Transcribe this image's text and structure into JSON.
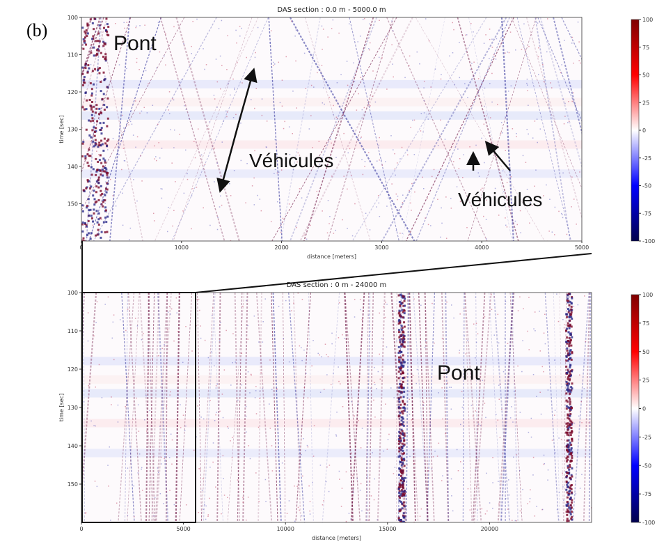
{
  "panel_label": "(b)",
  "chart_data": [
    {
      "type": "heatmap",
      "title": "DAS section : 0.0 m - 5000.0 m",
      "xlabel": "distance [meters]",
      "ylabel": "time [sec]",
      "xlim": [
        0,
        5000
      ],
      "xticks": [
        0,
        1000,
        2000,
        3000,
        4000,
        5000
      ],
      "ylim": [
        160,
        100
      ],
      "yticks": [
        100,
        110,
        120,
        130,
        140,
        150
      ],
      "colorbar": {
        "lim": [
          -100,
          100
        ],
        "ticks": [
          100,
          75,
          50,
          25,
          0,
          -25,
          -50,
          -75,
          -100
        ],
        "colors": [
          "#00004c",
          "#0000ff",
          "#ffffff",
          "#ff0000",
          "#7f0000"
        ]
      },
      "annotations": [
        "Pont",
        "Véhicules",
        "Véhicules"
      ]
    },
    {
      "type": "heatmap",
      "title": "DAS section : 0 m - 24000 m",
      "xlabel": "distance [meters]",
      "ylabel": "time [sec]",
      "xlim": [
        0,
        25000
      ],
      "xticks": [
        0,
        5000,
        10000,
        15000,
        20000
      ],
      "ylim": [
        160,
        100
      ],
      "yticks": [
        100,
        110,
        120,
        130,
        140,
        150
      ],
      "colorbar": {
        "lim": [
          -100,
          100
        ],
        "ticks": [
          100,
          75,
          50,
          25,
          0,
          -25,
          -50,
          -75,
          -100
        ],
        "colors": [
          "#00004c",
          "#0000ff",
          "#ffffff",
          "#ff0000",
          "#7f0000"
        ]
      },
      "annotations": [
        "Pont"
      ]
    }
  ]
}
